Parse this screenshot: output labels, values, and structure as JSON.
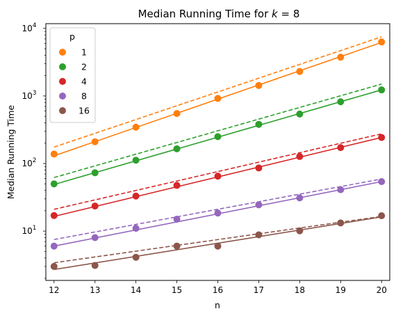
{
  "chart_data": {
    "type": "scatter",
    "title_prefix": "Median Running Time for ",
    "title_var": "k",
    "title_suffix": " = 8",
    "xlabel": "n",
    "ylabel": "Median Running Time",
    "y_scale": "log",
    "xlim": [
      11.8,
      20.2
    ],
    "ylim_log10": [
      0.27,
      4.07
    ],
    "x_ticks": [
      12,
      13,
      14,
      15,
      16,
      17,
      18,
      19,
      20
    ],
    "y_ticks": [
      {
        "exp": 1,
        "base": "10",
        "power": "1"
      },
      {
        "exp": 2,
        "base": "10",
        "power": "2"
      },
      {
        "exp": 3,
        "base": "10",
        "power": "3"
      },
      {
        "exp": 4,
        "base": "10",
        "power": "4"
      }
    ],
    "grid": false,
    "legend": {
      "title": "p",
      "position": "top-left"
    },
    "x": [
      12,
      13,
      14,
      15,
      16,
      17,
      18,
      19,
      20
    ],
    "series": [
      {
        "name": "1",
        "color": "#ff7f0e",
        "points": [
          138,
          210,
          345,
          550,
          920,
          1430,
          2300,
          3750,
          6300
        ],
        "fit_solid": [
          130,
          6200
        ],
        "fit_dashed": [
          175,
          7500
        ]
      },
      {
        "name": "2",
        "color": "#2ca02c",
        "points": [
          50,
          73,
          112,
          165,
          250,
          380,
          540,
          820,
          1230
        ],
        "fit_solid": [
          49,
          1230
        ],
        "fit_dashed": [
          62,
          1500
        ]
      },
      {
        "name": "4",
        "color": "#d62728",
        "points": [
          17,
          23.5,
          33,
          47.5,
          65,
          86,
          127,
          172,
          243
        ],
        "fit_solid": [
          16.5,
          243
        ],
        "fit_dashed": [
          21,
          275
        ]
      },
      {
        "name": "8",
        "color": "#9467bd",
        "points": [
          6.0,
          8.0,
          11.0,
          15.0,
          18.5,
          24.5,
          31.0,
          41.0,
          54.0
        ],
        "fit_solid": [
          6.0,
          54.0
        ],
        "fit_dashed": [
          7.5,
          59.0
        ]
      },
      {
        "name": "16",
        "color": "#8c564b",
        "points": [
          3.0,
          3.1,
          4.1,
          6.0,
          6.0,
          8.8,
          10.1,
          13.2,
          16.9
        ],
        "fit_solid": [
          2.7,
          16.2
        ],
        "fit_dashed": [
          3.4,
          16.5
        ]
      }
    ]
  }
}
